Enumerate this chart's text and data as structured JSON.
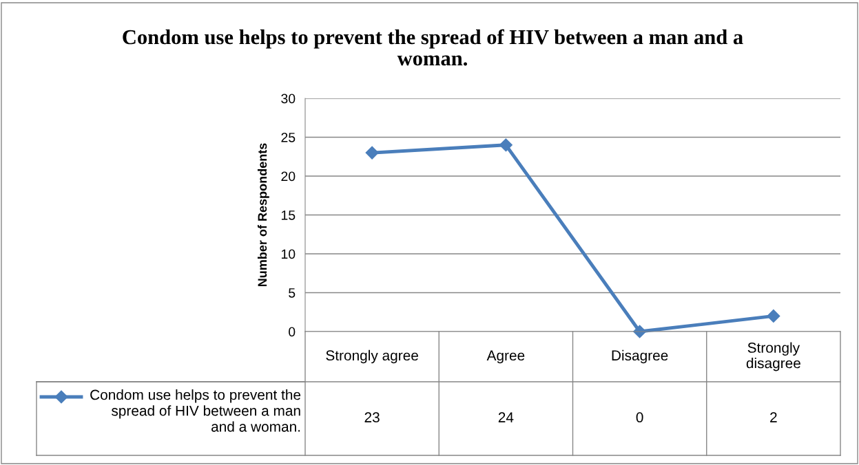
{
  "chart_data": {
    "type": "line",
    "title": "Condom use helps to prevent the spread of HIV between a man and a woman.",
    "ylabel": "Number of Respondents",
    "categories": [
      "Strongly agree",
      "Agree",
      "Disagree",
      "Strongly disagree"
    ],
    "series": [
      {
        "name": "Condom use helps to prevent the spread of HIV between a man and a woman.",
        "color": "#4a7ebb",
        "values": [
          23,
          24,
          0,
          2
        ]
      }
    ],
    "ylim": [
      0,
      30
    ],
    "yticks": [
      0,
      5,
      10,
      15,
      20,
      25,
      30
    ],
    "grid": "y",
    "marker": "diamond",
    "line_style": "solid",
    "legend": "bottom",
    "data_labels": true
  }
}
